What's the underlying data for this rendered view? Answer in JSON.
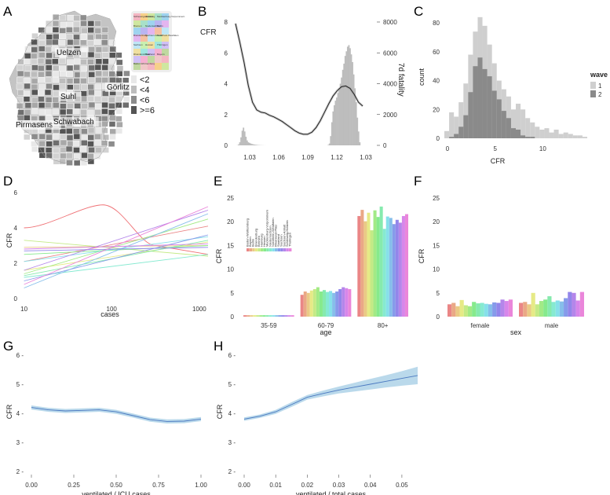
{
  "panel_labels": [
    "A",
    "B",
    "C",
    "D",
    "E",
    "F",
    "G",
    "H"
  ],
  "colors": {
    "bar_light": "#cfcfcf",
    "bar_dark": "#8a8a8a",
    "ribbon": "#a9cfe6",
    "line_blue": "#4a78c0",
    "map_fill": "#bdbdbd",
    "map_border": "#ffffff"
  },
  "panel_a": {
    "city_labels": [
      "Uelzen",
      "Görlitz",
      "Suhl",
      "Pirmasens",
      "Schwabach"
    ],
    "legend": [
      {
        "label": "<2",
        "color": "#e8e8e8"
      },
      {
        "label": "<4",
        "color": "#bdbdbd"
      },
      {
        "label": "<6",
        "color": "#8c8c8c"
      },
      {
        "label": ">=6",
        "color": "#555555"
      }
    ],
    "inset_states": [
      "Schleswig-Holstein",
      "Hamburg",
      "Mecklenburg-Vorpommern",
      "Bremen",
      "Niedersachsen",
      "Berlin",
      "Brandenburg",
      "Sachsen-Anhalt",
      "Nordrhein-Westfalen",
      "Sachsen",
      "Hessen",
      "Thüringen",
      "Rheinland-Pfalz",
      "Saarland",
      "Bayern",
      "Baden-Württemberg"
    ]
  },
  "chart_data": [
    {
      "panel": "B",
      "type": "area",
      "ylabel_left": "CFR",
      "ylabel_right": "7d fatality",
      "x_ticks": [
        "1.03",
        "1.06",
        "1.09",
        "1.12",
        "1.03"
      ],
      "y_left_ticks": [
        0,
        2,
        4,
        6,
        8
      ],
      "y_right_ticks": [
        0,
        2000,
        4000,
        6000,
        8000
      ],
      "ylim_left": [
        0,
        8
      ],
      "ylim_right": [
        0,
        8000
      ],
      "fatality_7d": [
        0,
        10,
        60,
        200,
        520,
        950,
        1150,
        900,
        560,
        320,
        200,
        160,
        120,
        90,
        70,
        50,
        40,
        30,
        20,
        15,
        10,
        8,
        5,
        3,
        2,
        1,
        0,
        0,
        0,
        0,
        0,
        0,
        0,
        0,
        0,
        0,
        0,
        0,
        0,
        0,
        0,
        0,
        0,
        0,
        0,
        0,
        0,
        0,
        0,
        0,
        0,
        0,
        0,
        0,
        0,
        0,
        0,
        0,
        0,
        0,
        0,
        0,
        0,
        0,
        0,
        0,
        0,
        0,
        0,
        0,
        0,
        0,
        0,
        0,
        0,
        0,
        30,
        120,
        600,
        1500,
        2200,
        2600,
        2900,
        3100,
        3400,
        3700,
        4000,
        4400,
        4900,
        5300,
        5800,
        6100,
        6400,
        6500,
        6300,
        5900,
        5400,
        4600,
        3700,
        2800,
        1800,
        900,
        200,
        0,
        0
      ],
      "cfr_curve": [
        [
          0,
          7.9
        ],
        [
          4,
          6.7
        ],
        [
          8,
          5.4
        ],
        [
          12,
          3.9
        ],
        [
          16,
          2.8
        ],
        [
          20,
          2.3
        ],
        [
          24,
          2.15
        ],
        [
          28,
          2.1
        ],
        [
          32,
          1.95
        ],
        [
          36,
          1.85
        ],
        [
          40,
          1.7
        ],
        [
          44,
          1.55
        ],
        [
          48,
          1.35
        ],
        [
          52,
          1.15
        ],
        [
          56,
          0.95
        ],
        [
          60,
          0.8
        ],
        [
          64,
          0.72
        ],
        [
          68,
          0.72
        ],
        [
          72,
          0.85
        ],
        [
          76,
          1.15
        ],
        [
          80,
          1.6
        ],
        [
          84,
          2.15
        ],
        [
          88,
          2.7
        ],
        [
          92,
          3.2
        ],
        [
          96,
          3.55
        ],
        [
          100,
          3.8
        ],
        [
          104,
          3.85
        ],
        [
          108,
          3.7
        ],
        [
          112,
          3.3
        ],
        [
          116,
          2.8
        ],
        [
          120,
          2.55
        ]
      ]
    },
    {
      "panel": "C",
      "type": "bar",
      "xlabel": "CFR",
      "ylabel": "count",
      "x_ticks": [
        0,
        5,
        10
      ],
      "y_ticks": [
        0,
        20,
        40,
        60,
        80
      ],
      "ylim": [
        0,
        85
      ],
      "bin_width": 0.5,
      "legend_title": "wave",
      "series": [
        {
          "name": "1",
          "values": [
            5,
            18,
            15,
            25,
            38,
            58,
            74,
            84,
            78,
            65,
            52,
            40,
            34,
            29,
            20,
            24,
            20,
            14,
            11,
            8,
            6,
            7,
            4,
            6,
            3,
            4,
            3,
            2,
            2,
            1
          ]
        },
        {
          "name": "2",
          "values": [
            0,
            1,
            3,
            8,
            16,
            32,
            50,
            56,
            48,
            43,
            33,
            27,
            19,
            14,
            7,
            6,
            2,
            1,
            1,
            0,
            0,
            0,
            0,
            0,
            0,
            0,
            0,
            0,
            0,
            0
          ]
        }
      ]
    },
    {
      "panel": "D",
      "type": "line",
      "xlabel": "cases",
      "ylabel": "CFR",
      "x_ticks": [
        "10",
        "100",
        "1000"
      ],
      "y_ticks": [
        0,
        2,
        4,
        6
      ],
      "xlim_log10": [
        0.95,
        3.1
      ],
      "ylim": [
        0,
        6
      ],
      "series": [
        {
          "name": "Baden-Württemberg",
          "points": [
            [
              1,
              2.1
            ],
            [
              3.1,
              4.1
            ]
          ]
        },
        {
          "name": "Bayern",
          "points": [
            [
              1,
              4.0
            ],
            [
              1.5,
              4.6
            ],
            [
              1.9,
              5.3
            ],
            [
              2.2,
              4.5
            ],
            [
              2.5,
              3.0
            ],
            [
              3.1,
              2.5
            ]
          ]
        },
        {
          "name": "Berlin",
          "points": [
            [
              1,
              2.9
            ],
            [
              3.1,
              3.0
            ]
          ]
        },
        {
          "name": "Brandenburg",
          "points": [
            [
              1,
              1.6
            ],
            [
              3.1,
              3.2
            ]
          ]
        },
        {
          "name": "Bremen",
          "points": [
            [
              1,
              3.3
            ],
            [
              3.1,
              2.4
            ]
          ]
        },
        {
          "name": "Hamburg",
          "points": [
            [
              1,
              1.4
            ],
            [
              3.1,
              4.5
            ]
          ]
        },
        {
          "name": "Hessen",
          "points": [
            [
              1,
              2.5
            ],
            [
              3.1,
              3.0
            ]
          ]
        },
        {
          "name": "Mecklenburg-Vorpommern",
          "points": [
            [
              1,
              1.3
            ],
            [
              3.1,
              3.3
            ]
          ]
        },
        {
          "name": "Niedersachsen",
          "points": [
            [
              1,
              1.2
            ],
            [
              3.1,
              2.5
            ]
          ]
        },
        {
          "name": "Nordrhein-Westfalen",
          "points": [
            [
              1,
              2.1
            ],
            [
              3.1,
              3.5
            ]
          ]
        },
        {
          "name": "Rheinland-Pfalz",
          "points": [
            [
              1,
              0.6
            ],
            [
              3.1,
              4.8
            ]
          ]
        },
        {
          "name": "Saarland",
          "points": [
            [
              1,
              1.0
            ],
            [
              3.1,
              3.6
            ]
          ]
        },
        {
          "name": "Sachsen",
          "points": [
            [
              1,
              2.7
            ],
            [
              3.1,
              2.9
            ]
          ]
        },
        {
          "name": "Sachsen-Anhalt",
          "points": [
            [
              1,
              1.6
            ],
            [
              3.1,
              5.0
            ]
          ]
        },
        {
          "name": "Schleswig-Holstein",
          "points": [
            [
              1,
              2.8
            ],
            [
              3.1,
              3.1
            ]
          ]
        },
        {
          "name": "Thüringen",
          "points": [
            [
              1,
              0.8
            ],
            [
              3.1,
              5.2
            ]
          ]
        }
      ]
    },
    {
      "panel": "E",
      "type": "bar",
      "xlabel": "age",
      "ylabel": "CFR",
      "categories": [
        "35-59",
        "60-79",
        "80+"
      ],
      "y_ticks": [
        0,
        5,
        10,
        15,
        20,
        25
      ],
      "ylim": [
        0,
        25
      ],
      "legend_entries": [
        "Baden-Württemberg",
        "Bayern",
        "Berlin",
        "Brandenburg",
        "Bremen",
        "Hamburg",
        "Hessen",
        "Mecklenburg-Vorpommern",
        "Niedersachsen",
        "Nordrhein-Westfalen",
        "Rheinland-Pfalz",
        "Saarland",
        "Sachsen",
        "Sachsen-Anhalt",
        "Schleswig-Holstein",
        "Thüringen"
      ],
      "series_values": [
        [
          0.3,
          0.3,
          0.3,
          0.3,
          0.3,
          0.3,
          0.3,
          0.3,
          0.3,
          0.3,
          0.3,
          0.3,
          0.3,
          0.3,
          0.3,
          0.3
        ],
        [
          4.6,
          5.3,
          5.0,
          5.5,
          5.8,
          6.2,
          5.3,
          5.6,
          5.2,
          5.4,
          5.0,
          5.3,
          5.8,
          6.2,
          6.0,
          5.8
        ],
        [
          21.2,
          22.5,
          20.1,
          21.9,
          18.2,
          22.4,
          21.0,
          23.2,
          18.5,
          21.1,
          20.8,
          19.5,
          20.4,
          19.8,
          21.2,
          21.6
        ]
      ]
    },
    {
      "panel": "F",
      "type": "bar",
      "xlabel": "sex",
      "ylabel": "CFR",
      "categories": [
        "female",
        "male"
      ],
      "y_ticks": [
        0,
        5,
        10,
        15,
        20,
        25
      ],
      "ylim": [
        0,
        25
      ],
      "series_values": [
        [
          2.6,
          2.9,
          2.2,
          3.5,
          2.4,
          2.2,
          3.1,
          2.8,
          2.9,
          2.7,
          2.6,
          3.0,
          2.9,
          3.6,
          3.3,
          3.6
        ],
        [
          2.9,
          3.1,
          2.6,
          5.0,
          2.6,
          3.3,
          3.6,
          4.3,
          3.1,
          3.4,
          3.2,
          3.9,
          5.2,
          5.0,
          3.4,
          5.2
        ]
      ]
    },
    {
      "panel": "G",
      "type": "line",
      "xlabel": "ventilated / ICU cases",
      "ylabel": "CFR",
      "x_ticks": [
        "0.00",
        "0.25",
        "0.50",
        "0.75",
        "1.00"
      ],
      "y_ticks": [
        2,
        3,
        4,
        5,
        6
      ],
      "xlim": [
        0,
        1
      ],
      "ylim": [
        2,
        6
      ],
      "line": [
        [
          0,
          4.2
        ],
        [
          0.1,
          4.12
        ],
        [
          0.2,
          4.08
        ],
        [
          0.3,
          4.1
        ],
        [
          0.4,
          4.12
        ],
        [
          0.5,
          4.05
        ],
        [
          0.6,
          3.92
        ],
        [
          0.7,
          3.78
        ],
        [
          0.8,
          3.72
        ],
        [
          0.9,
          3.73
        ],
        [
          1.0,
          3.8
        ]
      ],
      "band": 0.07
    },
    {
      "panel": "H",
      "type": "line",
      "xlabel": "ventilated / total cases",
      "ylabel": "CFR",
      "x_ticks": [
        "0.00",
        "0.01",
        "0.02",
        "0.03",
        "0.04",
        "0.05"
      ],
      "y_ticks": [
        2,
        3,
        4,
        5,
        6
      ],
      "xlim": [
        0,
        0.055
      ],
      "ylim": [
        2,
        6
      ],
      "line": [
        [
          0,
          3.8
        ],
        [
          0.005,
          3.9
        ],
        [
          0.01,
          4.05
        ],
        [
          0.015,
          4.3
        ],
        [
          0.02,
          4.55
        ],
        [
          0.025,
          4.68
        ],
        [
          0.03,
          4.8
        ],
        [
          0.035,
          4.9
        ],
        [
          0.04,
          5.0
        ],
        [
          0.045,
          5.1
        ],
        [
          0.05,
          5.2
        ],
        [
          0.055,
          5.3
        ]
      ],
      "band_half": [
        0.06,
        0.06,
        0.07,
        0.08,
        0.08,
        0.1,
        0.12,
        0.15,
        0.18,
        0.21,
        0.25,
        0.3
      ]
    }
  ]
}
